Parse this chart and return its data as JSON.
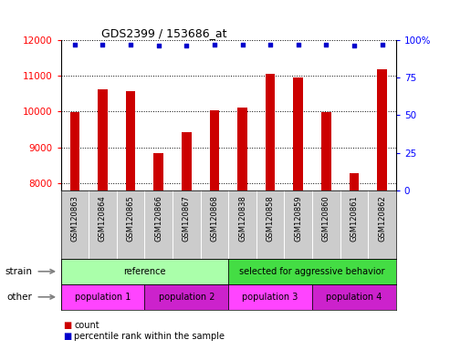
{
  "title": "GDS2399 / 153686_at",
  "samples": [
    "GSM120863",
    "GSM120864",
    "GSM120865",
    "GSM120866",
    "GSM120867",
    "GSM120868",
    "GSM120838",
    "GSM120858",
    "GSM120859",
    "GSM120860",
    "GSM120861",
    "GSM120862"
  ],
  "counts": [
    9980,
    10620,
    10560,
    8840,
    9430,
    10040,
    10100,
    11060,
    10960,
    9980,
    8280,
    11180
  ],
  "percentiles": [
    97,
    97,
    97,
    96,
    96,
    97,
    97,
    97,
    97,
    97,
    96,
    97
  ],
  "ylim_left": [
    7800,
    12000
  ],
  "ylim_right": [
    0,
    100
  ],
  "yticks_left": [
    8000,
    9000,
    10000,
    11000,
    12000
  ],
  "yticks_right": [
    0,
    25,
    50,
    75,
    100
  ],
  "bar_color": "#cc0000",
  "dot_color": "#0000cc",
  "strain_groups": [
    {
      "label": "reference",
      "start": 0,
      "end": 6,
      "color": "#aaffaa"
    },
    {
      "label": "selected for aggressive behavior",
      "start": 6,
      "end": 12,
      "color": "#44dd44"
    }
  ],
  "other_groups": [
    {
      "label": "population 1",
      "start": 0,
      "end": 3,
      "color": "#ff44ff"
    },
    {
      "label": "population 2",
      "start": 3,
      "end": 6,
      "color": "#cc22cc"
    },
    {
      "label": "population 3",
      "start": 6,
      "end": 9,
      "color": "#ff44ff"
    },
    {
      "label": "population 4",
      "start": 9,
      "end": 12,
      "color": "#cc22cc"
    }
  ],
  "strain_label": "strain",
  "other_label": "other",
  "legend_count_label": "count",
  "legend_pct_label": "percentile rank within the sample",
  "background_color": "#ffffff",
  "tick_area_bg": "#cccccc",
  "bar_width": 0.35
}
